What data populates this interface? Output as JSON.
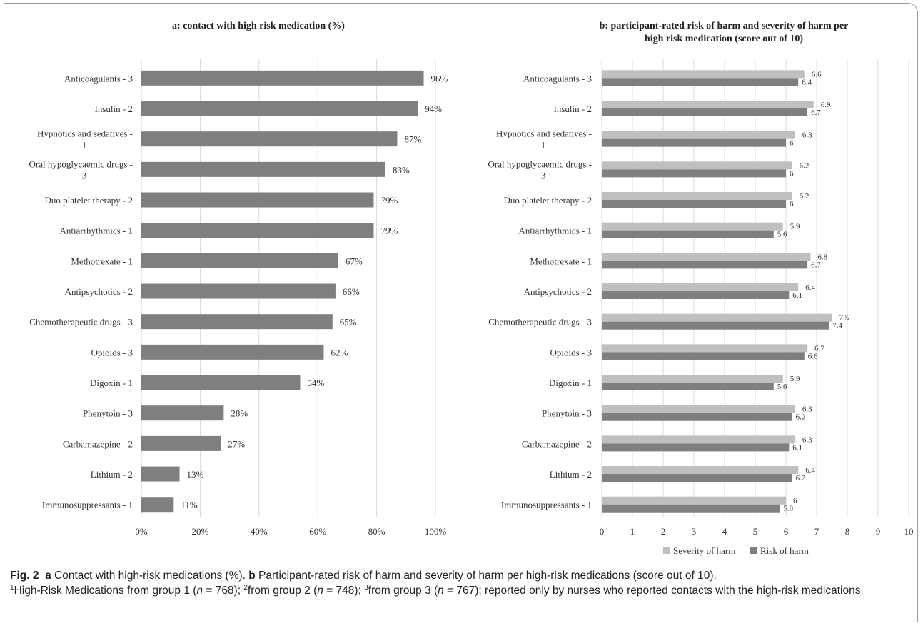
{
  "chart_data": [
    {
      "type": "bar",
      "orientation": "horizontal",
      "title": "a: contact with high risk medication (%)",
      "categories": [
        "Anticoagulants - 3",
        "Insulin - 2",
        "Hypnotics and sedatives - 1",
        "Oral hypoglycaemic drugs - 3",
        "Duo platelet therapy - 2",
        "Antiarrhythmics - 1",
        "Methotrexate - 1",
        "Antipsychotics - 2",
        "Chemotherapeutic drugs - 3",
        "Opioids - 3",
        "Digoxin - 1",
        "Phenytoin - 3",
        "Carbamazepine - 2",
        "Lithium - 2",
        "Immunosuppressants - 1"
      ],
      "values": [
        96,
        94,
        87,
        83,
        79,
        79,
        67,
        66,
        65,
        62,
        54,
        28,
        27,
        13,
        11
      ],
      "value_labels": [
        "96%",
        "94%",
        "87%",
        "83%",
        "79%",
        "79%",
        "67%",
        "66%",
        "65%",
        "62%",
        "54%",
        "28%",
        "27%",
        "13%",
        "11%"
      ],
      "xlim": [
        0,
        100
      ],
      "xticks": [
        "0%",
        "20%",
        "40%",
        "60%",
        "80%",
        "100%"
      ],
      "grid": true,
      "color": "#7f7f7f"
    },
    {
      "type": "bar",
      "orientation": "horizontal",
      "title": "b: participant-rated risk of harm and severity of harm per high risk medication (score out of 10)",
      "categories": [
        "Anticoagulants - 3",
        "Insulin - 2",
        "Hypnotics and sedatives - 1",
        "Oral hypoglycaemic drugs - 3",
        "Duo platelet therapy - 2",
        "Antiarrhythmics - 1",
        "Methotrexate - 1",
        "Antipsychotics - 2",
        "Chemotherapeutic drugs - 3",
        "Opioids - 3",
        "Digoxin - 1",
        "Phenytoin - 3",
        "Carbamazepine - 2",
        "Lithium - 2",
        "Immunosuppressants - 1"
      ],
      "series": [
        {
          "name": "Severity of harm",
          "color": "#bfbfbf",
          "values": [
            6.6,
            6.9,
            6.3,
            6.2,
            6.2,
            5.9,
            6.8,
            6.4,
            7.5,
            6.7,
            5.9,
            6.3,
            6.3,
            6.4,
            6
          ]
        },
        {
          "name": "Risk of harm",
          "color": "#7f7f7f",
          "values": [
            6.4,
            6.7,
            6,
            6,
            6,
            5.6,
            6.7,
            6.1,
            7.4,
            6.6,
            5.6,
            6.2,
            6.1,
            6.2,
            5.8
          ]
        }
      ],
      "xlim": [
        0,
        10
      ],
      "xticks": [
        "0",
        "1",
        "2",
        "3",
        "4",
        "5",
        "6",
        "7",
        "8",
        "9",
        "10"
      ],
      "grid": true,
      "legend": "bottom"
    }
  ],
  "caption": {
    "fig_label": "Fig. 2",
    "a_label": "a",
    "a_text": " Contact with high-risk medications (%). ",
    "b_label": "b",
    "b_text": " Participant-rated risk of harm and severity of harm per high-risk medications (score out of 10).",
    "sup1": "1",
    "part1": "High-Risk Medications from group 1 (",
    "n": "n",
    "eq1": " = 768); ",
    "sup2": "2",
    "part2": "from group 2 (",
    "eq2": " = 748); ",
    "sup3": "3",
    "part3": "from group 3 (",
    "eq3": " = 767); reported only by nurses who reported contacts with the high-risk medications"
  }
}
